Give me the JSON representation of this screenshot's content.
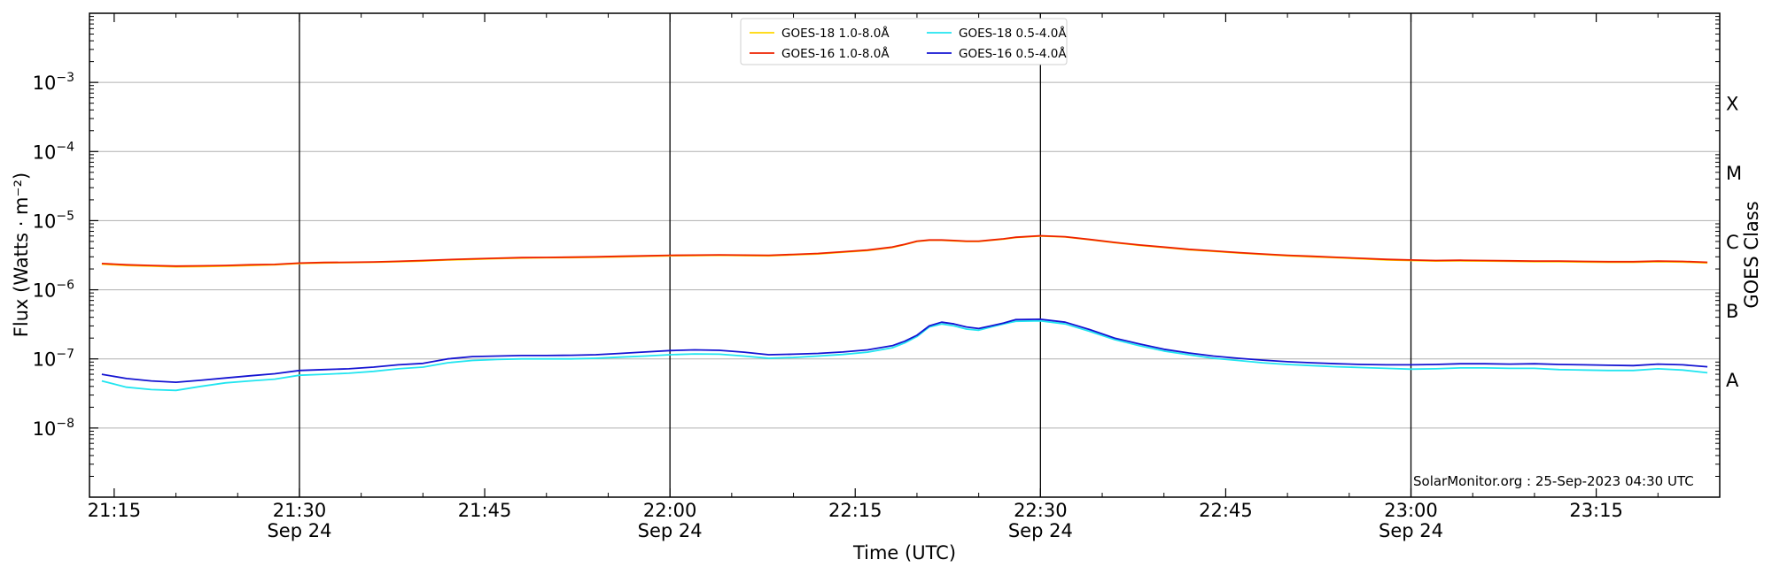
{
  "chart_data": {
    "type": "line",
    "xlabel": "Time (UTC)",
    "ylabel": "Flux (Watts · m⁻²)",
    "y2label": "GOES Class",
    "yscale": "log",
    "xlim": [
      "21:13",
      "23:25"
    ],
    "ylim": [
      1e-09,
      0.01
    ],
    "grid": "horizontal",
    "legend_location": "top-center",
    "x_ticks": [
      {
        "time": "21:15",
        "date": ""
      },
      {
        "time": "21:30",
        "date": "Sep 24"
      },
      {
        "time": "21:45",
        "date": ""
      },
      {
        "time": "22:00",
        "date": "Sep 24"
      },
      {
        "time": "22:15",
        "date": ""
      },
      {
        "time": "22:30",
        "date": "Sep 24"
      },
      {
        "time": "22:45",
        "date": ""
      },
      {
        "time": "23:00",
        "date": "Sep 24"
      },
      {
        "time": "23:15",
        "date": ""
      }
    ],
    "vertical_lines": [
      "21:30",
      "22:00",
      "22:30",
      "23:00"
    ],
    "y_ticks": [
      {
        "value": 1e-08,
        "base": "10",
        "exp": "−8"
      },
      {
        "value": 1e-07,
        "base": "10",
        "exp": "−7"
      },
      {
        "value": 1e-06,
        "base": "10",
        "exp": "−6"
      },
      {
        "value": 1e-05,
        "base": "10",
        "exp": "−5"
      },
      {
        "value": 0.0001,
        "base": "10",
        "exp": "−4"
      },
      {
        "value": 0.001,
        "base": "10",
        "exp": "−3"
      }
    ],
    "goes_classes": [
      {
        "label": "A",
        "value": 5e-08
      },
      {
        "label": "B",
        "value": 5e-07
      },
      {
        "label": "C",
        "value": 5e-06
      },
      {
        "label": "M",
        "value": 5e-05
      },
      {
        "label": "X",
        "value": 0.0005
      }
    ],
    "x": [
      "21:14",
      "21:16",
      "21:18",
      "21:20",
      "21:22",
      "21:24",
      "21:26",
      "21:28",
      "21:30",
      "21:32",
      "21:34",
      "21:36",
      "21:38",
      "21:40",
      "21:42",
      "21:44",
      "21:46",
      "21:48",
      "21:50",
      "21:52",
      "21:54",
      "21:56",
      "21:58",
      "22:00",
      "22:02",
      "22:04",
      "22:06",
      "22:08",
      "22:10",
      "22:12",
      "22:14",
      "22:16",
      "22:18",
      "22:19",
      "22:20",
      "22:21",
      "22:22",
      "22:23",
      "22:24",
      "22:25",
      "22:26",
      "22:27",
      "22:28",
      "22:30",
      "22:32",
      "22:34",
      "22:36",
      "22:38",
      "22:40",
      "22:42",
      "22:44",
      "22:46",
      "22:48",
      "22:50",
      "22:52",
      "22:54",
      "22:56",
      "22:58",
      "23:00",
      "23:02",
      "23:04",
      "23:06",
      "23:08",
      "23:10",
      "23:12",
      "23:14",
      "23:16",
      "23:18",
      "23:20",
      "23:22",
      "23:24"
    ],
    "series": [
      {
        "name": "GOES-18 1.0-8.0Å",
        "color": "#ffd700",
        "values": [
          2.35e-06,
          2.25e-06,
          2.2e-06,
          2.15e-06,
          2.17e-06,
          2.2e-06,
          2.25e-06,
          2.3e-06,
          2.4e-06,
          2.45e-06,
          2.47e-06,
          2.5e-06,
          2.55e-06,
          2.6e-06,
          2.7e-06,
          2.75e-06,
          2.82e-06,
          2.88e-06,
          2.9e-06,
          2.92e-06,
          2.95e-06,
          3e-06,
          3.05e-06,
          3.1e-06,
          3.12e-06,
          3.15e-06,
          3.12e-06,
          3.1e-06,
          3.2e-06,
          3.3e-06,
          3.5e-06,
          3.7e-06,
          4.1e-06,
          4.5e-06,
          5e-06,
          5.2e-06,
          5.2e-06,
          5.1e-06,
          5e-06,
          5e-06,
          5.2e-06,
          5.4e-06,
          5.7e-06,
          6e-06,
          5.8e-06,
          5.3e-06,
          4.8e-06,
          4.4e-06,
          4.1e-06,
          3.8e-06,
          3.6e-06,
          3.4e-06,
          3.25e-06,
          3.1e-06,
          3e-06,
          2.9e-06,
          2.8e-06,
          2.7e-06,
          2.65e-06,
          2.6e-06,
          2.62e-06,
          2.6e-06,
          2.58e-06,
          2.55e-06,
          2.55e-06,
          2.52e-06,
          2.5e-06,
          2.5e-06,
          2.55e-06,
          2.52e-06,
          2.45e-06
        ]
      },
      {
        "name": "GOES-16 1.0-8.0Å",
        "color": "#ee2200",
        "values": [
          2.4e-06,
          2.3e-06,
          2.25e-06,
          2.2e-06,
          2.22e-06,
          2.25e-06,
          2.3e-06,
          2.33e-06,
          2.43e-06,
          2.48e-06,
          2.5e-06,
          2.53e-06,
          2.58e-06,
          2.65e-06,
          2.73e-06,
          2.8e-06,
          2.86e-06,
          2.92e-06,
          2.94e-06,
          2.96e-06,
          3e-06,
          3.05e-06,
          3.1e-06,
          3.15e-06,
          3.17e-06,
          3.2e-06,
          3.17e-06,
          3.15e-06,
          3.25e-06,
          3.35e-06,
          3.55e-06,
          3.75e-06,
          4.15e-06,
          4.55e-06,
          5.05e-06,
          5.25e-06,
          5.25e-06,
          5.15e-06,
          5.05e-06,
          5.05e-06,
          5.25e-06,
          5.45e-06,
          5.75e-06,
          6.05e-06,
          5.85e-06,
          5.35e-06,
          4.85e-06,
          4.45e-06,
          4.15e-06,
          3.85e-06,
          3.65e-06,
          3.45e-06,
          3.3e-06,
          3.15e-06,
          3.05e-06,
          2.95e-06,
          2.85e-06,
          2.75e-06,
          2.7e-06,
          2.65e-06,
          2.67e-06,
          2.65e-06,
          2.63e-06,
          2.6e-06,
          2.6e-06,
          2.57e-06,
          2.55e-06,
          2.55e-06,
          2.6e-06,
          2.57e-06,
          2.5e-06
        ]
      },
      {
        "name": "GOES-18 0.5-4.0Å",
        "color": "#22e5f0",
        "values": [
          4.8e-08,
          3.9e-08,
          3.6e-08,
          3.5e-08,
          4e-08,
          4.5e-08,
          4.8e-08,
          5.1e-08,
          5.8e-08,
          6e-08,
          6.2e-08,
          6.6e-08,
          7.2e-08,
          7.6e-08,
          8.8e-08,
          9.5e-08,
          9.8e-08,
          1e-07,
          1e-07,
          1e-07,
          1.02e-07,
          1.06e-07,
          1.1e-07,
          1.15e-07,
          1.18e-07,
          1.17e-07,
          1.1e-07,
          1.02e-07,
          1.05e-07,
          1.1e-07,
          1.16e-07,
          1.25e-07,
          1.45e-07,
          1.7e-07,
          2.1e-07,
          2.9e-07,
          3.2e-07,
          3e-07,
          2.7e-07,
          2.6e-07,
          2.9e-07,
          3.2e-07,
          3.5e-07,
          3.55e-07,
          3.2e-07,
          2.5e-07,
          1.9e-07,
          1.55e-07,
          1.3e-07,
          1.15e-07,
          1.02e-07,
          9.5e-08,
          8.8e-08,
          8.3e-08,
          8e-08,
          7.7e-08,
          7.5e-08,
          7.3e-08,
          7.1e-08,
          7.2e-08,
          7.4e-08,
          7.4e-08,
          7.3e-08,
          7.3e-08,
          7e-08,
          6.9e-08,
          6.8e-08,
          6.8e-08,
          7.2e-08,
          6.9e-08,
          6.3e-08
        ]
      },
      {
        "name": "GOES-16 0.5-4.0Å",
        "color": "#1414d2",
        "values": [
          6e-08,
          5.2e-08,
          4.8e-08,
          4.6e-08,
          4.9e-08,
          5.3e-08,
          5.7e-08,
          6.1e-08,
          6.8e-08,
          7e-08,
          7.2e-08,
          7.6e-08,
          8.2e-08,
          8.6e-08,
          1e-07,
          1.08e-07,
          1.1e-07,
          1.12e-07,
          1.12e-07,
          1.13e-07,
          1.15e-07,
          1.2e-07,
          1.26e-07,
          1.32e-07,
          1.35e-07,
          1.33e-07,
          1.25e-07,
          1.15e-07,
          1.17e-07,
          1.2e-07,
          1.26e-07,
          1.35e-07,
          1.55e-07,
          1.8e-07,
          2.2e-07,
          3e-07,
          3.4e-07,
          3.2e-07,
          2.9e-07,
          2.75e-07,
          3e-07,
          3.3e-07,
          3.7e-07,
          3.75e-07,
          3.4e-07,
          2.65e-07,
          2e-07,
          1.65e-07,
          1.38e-07,
          1.22e-07,
          1.1e-07,
          1.02e-07,
          9.6e-08,
          9.1e-08,
          8.8e-08,
          8.5e-08,
          8.3e-08,
          8.2e-08,
          8.2e-08,
          8.3e-08,
          8.5e-08,
          8.5e-08,
          8.4e-08,
          8.5e-08,
          8.3e-08,
          8.2e-08,
          8.1e-08,
          8e-08,
          8.4e-08,
          8.2e-08,
          7.7e-08
        ]
      }
    ],
    "annotation": "SolarMonitor.org : 25-Sep-2023 04:30 UTC"
  }
}
